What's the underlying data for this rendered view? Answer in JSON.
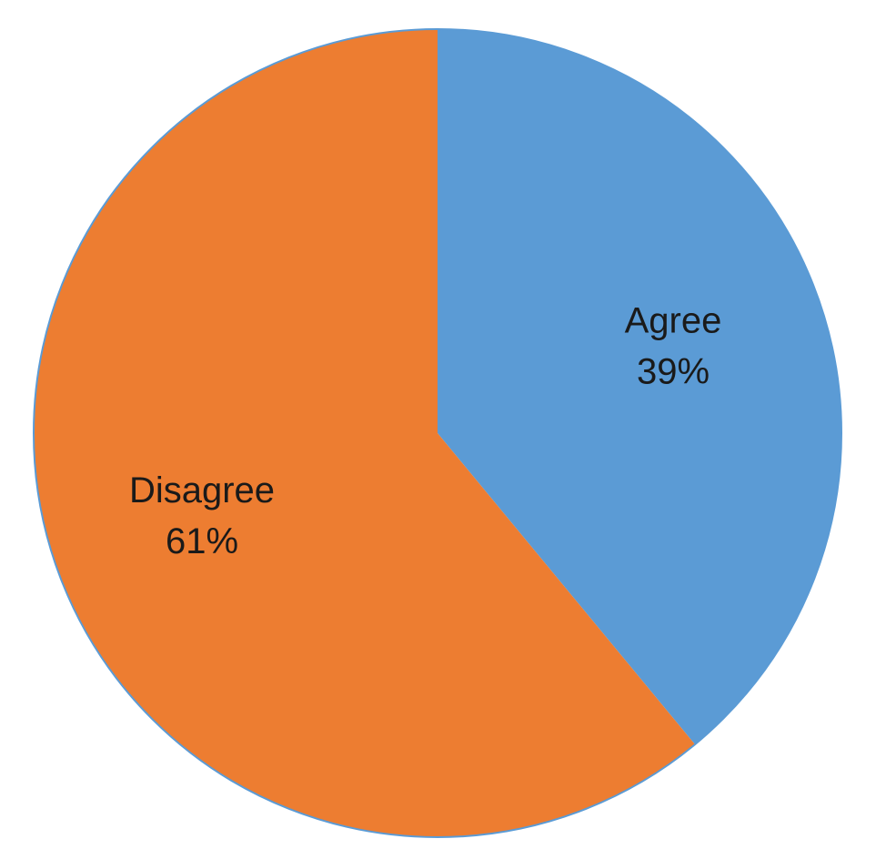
{
  "chart_data": {
    "type": "pie",
    "title": "",
    "slices": [
      {
        "label": "Agree",
        "value": 39,
        "display": "39%",
        "color": "#5B9BD5"
      },
      {
        "label": "Disagree",
        "value": 61,
        "display": "61%",
        "color": "#ED7D31"
      }
    ],
    "start_angle_deg": 0,
    "direction": "clockwise",
    "border_color": "#5B9BD5",
    "legend": "none"
  }
}
